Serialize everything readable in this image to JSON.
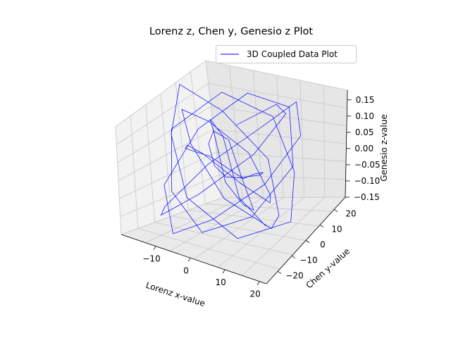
{
  "chart_data": {
    "type": "line",
    "projection": "3d",
    "title": "Lorenz z, Chen y, Genesio z Plot",
    "xlabel": "Lorenz x-value",
    "ylabel": "Chen y-value",
    "zlabel": "Genesio z-value",
    "xlim": [
      -20,
      22
    ],
    "ylim": [
      -28,
      28
    ],
    "zlim": [
      -0.15,
      0.18
    ],
    "x_ticks": [
      "−10",
      "0",
      "10",
      "20"
    ],
    "y_ticks": [
      "−20",
      "−10",
      "0",
      "10",
      "20"
    ],
    "z_ticks": [
      "−0.15",
      "−0.10",
      "−0.05",
      "0.00",
      "0.05",
      "0.10",
      "0.15"
    ],
    "grid": true,
    "legend_position": "top-right",
    "series": [
      {
        "name": "3D Coupled Data Plot",
        "color": "#0000ff",
        "x": [
          -3.2,
          6.1,
          12.4,
          8.7,
          -2.5,
          -11.8,
          -15.3,
          -8.9,
          2.2,
          10.6,
          16.1,
          11.3,
          1.7,
          -7.4,
          -13.9,
          -10.2,
          -1.1,
          8.8,
          14.7,
          9.2,
          -0.6,
          -9.7,
          -14.8,
          -6.3,
          4.5,
          12.9,
          17.5,
          7.8,
          -3.9,
          -12.6,
          -16.4,
          -9.1,
          3.3,
          11.7,
          15.8,
          6.4,
          -5.2,
          -13.1,
          -11.4,
          -2.8,
          7.1,
          13.6,
          10.4,
          0.9,
          -8.3,
          -15.1,
          -12.7,
          -3.6,
          5.9,
          14.2,
          16.9,
          8.1,
          -1.9,
          -10.5,
          -14.2,
          -7.7,
          2.9,
          11.1,
          13.3,
          4.8,
          -6.1,
          -12.2,
          -9.4,
          0.3,
          9.6,
          15.4
        ],
        "y": [
          12.5,
          18.1,
          9.4,
          -4.2,
          -15.7,
          -19.8,
          -8.6,
          6.3,
          17.9,
          21.2,
          10.8,
          -3.1,
          -16.4,
          -22.1,
          -12.5,
          2.7,
          15.3,
          20.6,
          8.9,
          -6.8,
          -18.2,
          -17.4,
          -5.1,
          9.8,
          19.5,
          14.2,
          0.4,
          -13.6,
          -20.9,
          -10.7,
          4.6,
          16.8,
          19.1,
          6.2,
          -9.3,
          -19.6,
          -14.8,
          -1.9,
          12.7,
          20.3,
          11.5,
          -4.8,
          -17.2,
          -21.5,
          -9.9,
          5.4,
          17.1,
          18.4,
          3.6,
          -11.2,
          -20.1,
          -13.3,
          1.8,
          14.9,
          19.8,
          7.4,
          -7.9,
          -18.7,
          -15.6,
          -2.3,
          11.9,
          18.9,
          9.1,
          -5.6,
          -16.8,
          -12.1
        ],
        "z": [
          0.05,
          0.12,
          0.16,
          0.09,
          -0.02,
          -0.1,
          -0.14,
          -0.06,
          0.04,
          0.13,
          0.1,
          0.0,
          -0.08,
          -0.13,
          -0.05,
          0.06,
          0.14,
          0.11,
          0.01,
          -0.09,
          -0.12,
          -0.03,
          0.08,
          0.15,
          0.07,
          -0.04,
          -0.11,
          -0.13,
          -0.01,
          0.1,
          0.16,
          0.05,
          -0.06,
          -0.14,
          -0.09,
          0.02,
          0.12,
          0.13,
          0.03,
          -0.07,
          -0.12,
          -0.04,
          0.07,
          0.15,
          0.08,
          -0.03,
          -0.1,
          -0.14,
          -0.02,
          0.09,
          0.14,
          0.06,
          -0.05,
          -0.11,
          -0.08,
          0.04,
          0.13,
          0.1,
          -0.01,
          -0.09,
          -0.13,
          -0.04,
          0.06,
          0.12,
          0.02,
          -0.07
        ]
      }
    ]
  }
}
